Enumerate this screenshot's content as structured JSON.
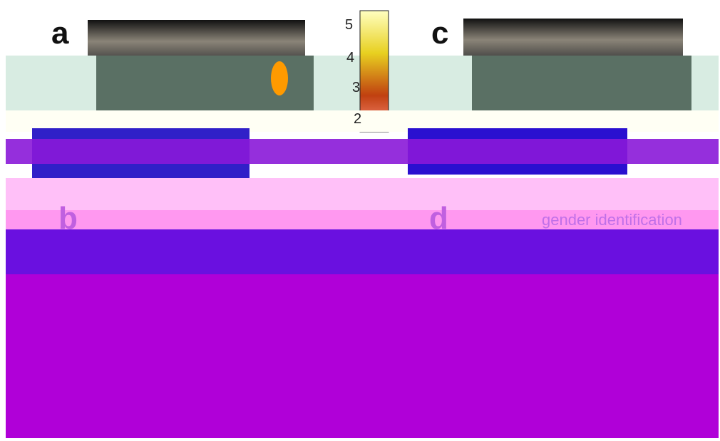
{
  "panels": [
    "a",
    "b",
    "c",
    "d"
  ],
  "colorbar": {
    "ticks": [
      "5",
      "4",
      "3",
      "2"
    ]
  },
  "condition": "gender identification"
}
